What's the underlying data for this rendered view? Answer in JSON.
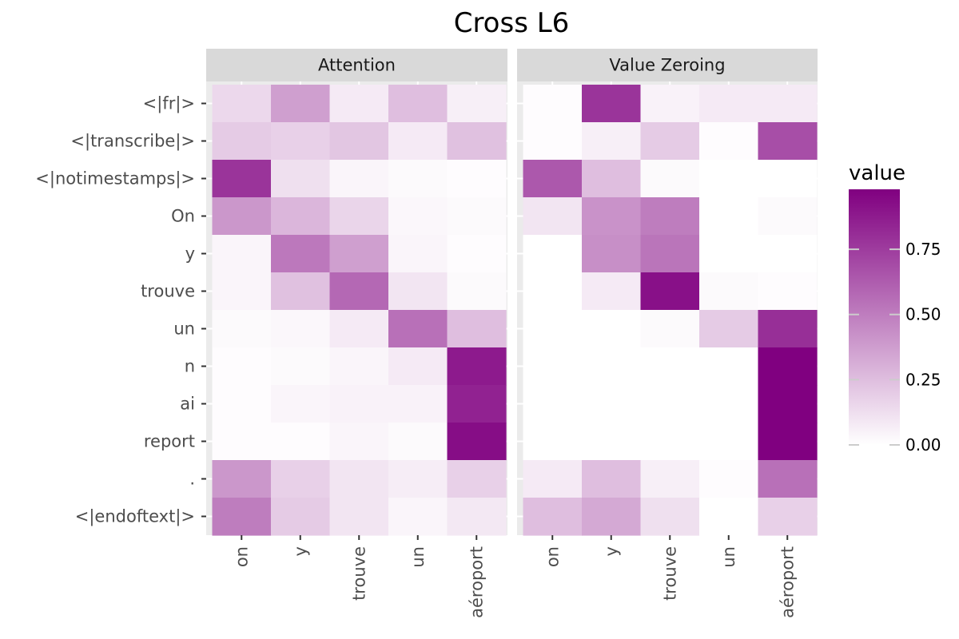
{
  "chart_data": {
    "type": "heatmap",
    "title": "Cross L6",
    "panels": [
      {
        "name": "Attention",
        "x": [
          "on",
          "y",
          "trouve",
          "un",
          "aéroport"
        ],
        "y": [
          "<|fr|>",
          "<|transcribe|>",
          "<|notimestamps|>",
          "On",
          "y",
          "trouve",
          "un",
          "n",
          "ai",
          "report",
          ".",
          "<|endoftext|>"
        ],
        "values": [
          [
            0.15,
            0.37,
            0.08,
            0.25,
            0.06
          ],
          [
            0.2,
            0.18,
            0.22,
            0.08,
            0.24
          ],
          [
            0.78,
            0.12,
            0.04,
            0.02,
            0.01
          ],
          [
            0.4,
            0.28,
            0.16,
            0.03,
            0.02
          ],
          [
            0.04,
            0.52,
            0.37,
            0.04,
            0.01
          ],
          [
            0.04,
            0.24,
            0.58,
            0.1,
            0.02
          ],
          [
            0.02,
            0.03,
            0.08,
            0.55,
            0.25
          ],
          [
            0.01,
            0.02,
            0.04,
            0.08,
            0.88
          ],
          [
            0.01,
            0.04,
            0.05,
            0.05,
            0.85
          ],
          [
            0.01,
            0.01,
            0.04,
            0.02,
            0.93
          ],
          [
            0.4,
            0.18,
            0.1,
            0.07,
            0.18
          ],
          [
            0.5,
            0.2,
            0.1,
            0.04,
            0.09
          ]
        ]
      },
      {
        "name": "Value Zeroing",
        "x": [
          "on",
          "y",
          "trouve",
          "un",
          "aéroport"
        ],
        "y": [
          "<|fr|>",
          "<|transcribe|>",
          "<|notimestamps|>",
          "On",
          "y",
          "trouve",
          "un",
          "n",
          "ai",
          "report",
          ".",
          "<|endoftext|>"
        ],
        "values": [
          [
            0.01,
            0.78,
            0.05,
            0.08,
            0.08
          ],
          [
            0.01,
            0.06,
            0.2,
            0.01,
            0.68
          ],
          [
            0.64,
            0.25,
            0.02,
            0.0,
            0.0
          ],
          [
            0.1,
            0.42,
            0.5,
            0.0,
            0.02
          ],
          [
            0.0,
            0.43,
            0.53,
            0.0,
            0.0
          ],
          [
            0.0,
            0.08,
            0.92,
            0.02,
            0.01
          ],
          [
            0.0,
            0.0,
            0.02,
            0.2,
            0.8
          ],
          [
            0.0,
            0.0,
            0.0,
            0.0,
            0.98
          ],
          [
            0.0,
            0.0,
            0.0,
            0.0,
            0.98
          ],
          [
            0.0,
            0.0,
            0.0,
            0.0,
            0.98
          ],
          [
            0.08,
            0.25,
            0.06,
            0.01,
            0.55
          ],
          [
            0.25,
            0.33,
            0.12,
            0.0,
            0.18
          ]
        ]
      }
    ],
    "legend": {
      "title": "value",
      "placement": "right",
      "ticks": [
        "0.00",
        "0.25",
        "0.50",
        "0.75"
      ],
      "tick_values": [
        0.0,
        0.25,
        0.5,
        0.75
      ],
      "range": [
        0.0,
        0.98
      ]
    },
    "colors": {
      "low": "#ffffff",
      "high": "#800080",
      "panel_background": "#ebebeb",
      "strip_background": "#d9d9d9",
      "grid": "#ffffff"
    }
  }
}
